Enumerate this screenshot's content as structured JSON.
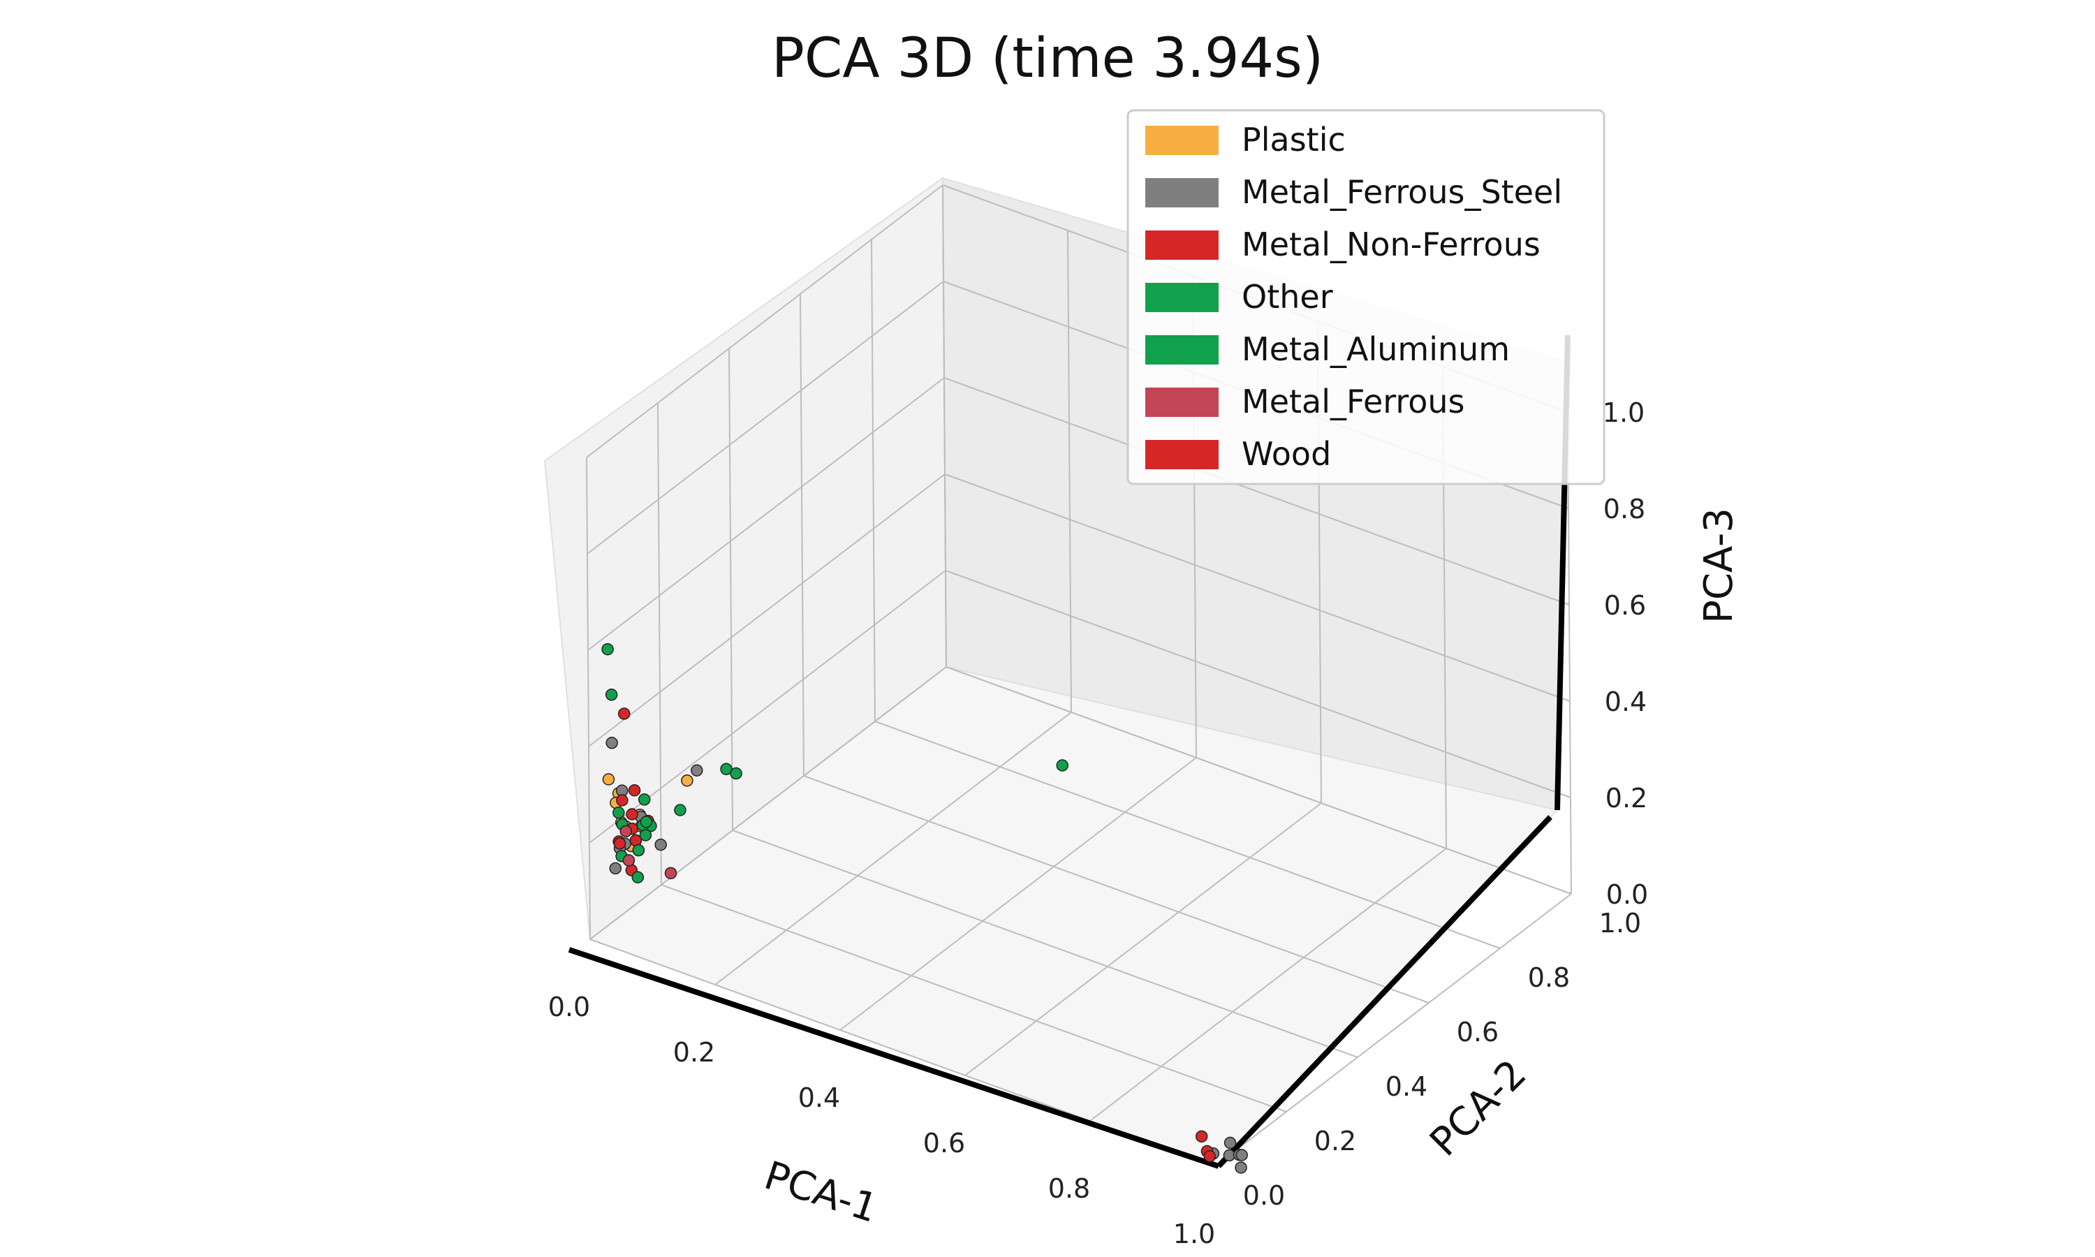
{
  "chart_data": {
    "type": "scatter",
    "projection": "3d",
    "title": "PCA 3D (time 3.94s)",
    "xlabel": "PCA-1",
    "ylabel": "PCA-2",
    "zlabel": "PCA-3",
    "xlim": [
      0,
      1
    ],
    "ylim": [
      0,
      1
    ],
    "zlim": [
      0,
      1
    ],
    "xticks": [
      "0.0",
      "0.2",
      "0.4",
      "0.6",
      "0.8",
      "1.0"
    ],
    "yticks": [
      "0.0",
      "0.2",
      "0.4",
      "0.6",
      "0.8",
      "1.0"
    ],
    "zticks": [
      "0.0",
      "0.2",
      "0.4",
      "0.6",
      "0.8",
      "1.0"
    ],
    "grid": true,
    "legend_position": "top-right",
    "series": [
      {
        "name": "Plastic",
        "color": "#F9AE42",
        "points": [
          [
            0.02,
            0.02,
            0.33
          ],
          [
            0.03,
            0.03,
            0.3
          ],
          [
            0.02,
            0.04,
            0.27
          ],
          [
            0.04,
            0.02,
            0.25
          ],
          [
            0.03,
            0.05,
            0.22
          ],
          [
            0.05,
            0.03,
            0.2
          ],
          [
            0.06,
            0.04,
            0.24
          ],
          [
            0.1,
            0.1,
            0.32
          ],
          [
            0.04,
            0.06,
            0.19
          ],
          [
            0.07,
            0.02,
            0.28
          ]
        ]
      },
      {
        "name": "Metal_Ferrous_Steel",
        "color": "#7F7F7F",
        "points": [
          [
            0.02,
            0.03,
            0.4
          ],
          [
            0.03,
            0.04,
            0.3
          ],
          [
            0.04,
            0.03,
            0.2
          ],
          [
            0.05,
            0.05,
            0.18
          ],
          [
            0.08,
            0.06,
            0.2
          ],
          [
            0.06,
            0.04,
            0.26
          ],
          [
            0.11,
            0.11,
            0.34
          ],
          [
            0.02,
            0.05,
            0.17
          ],
          [
            0.03,
            0.02,
            0.15
          ],
          [
            0.05,
            0.07,
            0.22
          ],
          [
            0.98,
            0.03,
            0.0
          ],
          [
            1.0,
            0.04,
            0.0
          ],
          [
            1.01,
            0.05,
            0.0
          ],
          [
            0.99,
            0.06,
            0.01
          ],
          [
            1.02,
            0.04,
            0.01
          ],
          [
            1.03,
            0.02,
            0.0
          ]
        ]
      },
      {
        "name": "Metal_Non-Ferrous",
        "color": "#D62728",
        "points": [
          [
            0.03,
            0.04,
            0.28
          ],
          [
            0.04,
            0.05,
            0.22
          ],
          [
            0.05,
            0.03,
            0.15
          ],
          [
            0.06,
            0.06,
            0.24
          ],
          [
            0.04,
            0.06,
            0.19
          ],
          [
            0.95,
            0.05,
            0.01
          ],
          [
            0.97,
            0.03,
            0.0
          ],
          [
            0.98,
            0.02,
            0.0
          ]
        ]
      },
      {
        "name": "Other",
        "color": "#11A14C",
        "points": [
          [
            0.02,
            0.02,
            0.6
          ],
          [
            0.02,
            0.03,
            0.5
          ],
          [
            0.03,
            0.03,
            0.26
          ],
          [
            0.05,
            0.05,
            0.18
          ],
          [
            0.06,
            0.03,
            0.14
          ],
          [
            0.07,
            0.05,
            0.24
          ],
          [
            0.14,
            0.14,
            0.34
          ],
          [
            0.15,
            0.15,
            0.33
          ],
          [
            0.04,
            0.08,
            0.21
          ],
          [
            0.08,
            0.02,
            0.27
          ]
        ]
      },
      {
        "name": "Metal_Aluminum",
        "color": "#11A14C",
        "points": [
          [
            0.03,
            0.04,
            0.23
          ],
          [
            0.04,
            0.02,
            0.18
          ],
          [
            0.05,
            0.07,
            0.2
          ],
          [
            0.06,
            0.05,
            0.29
          ],
          [
            0.1,
            0.08,
            0.27
          ],
          [
            0.3,
            0.8,
            0.05
          ]
        ]
      },
      {
        "name": "Metal_Ferrous",
        "color": "#C44555",
        "points": [
          [
            0.03,
            0.05,
            0.21
          ],
          [
            0.04,
            0.04,
            0.16
          ],
          [
            0.09,
            0.07,
            0.14
          ]
        ]
      },
      {
        "name": "Wood",
        "color": "#D62728",
        "points": [
          [
            0.04,
            0.03,
            0.47
          ],
          [
            0.05,
            0.04,
            0.31
          ],
          [
            0.03,
            0.03,
            0.2
          ],
          [
            0.02,
            0.05,
            0.18
          ],
          [
            0.04,
            0.05,
            0.25
          ]
        ]
      }
    ]
  }
}
